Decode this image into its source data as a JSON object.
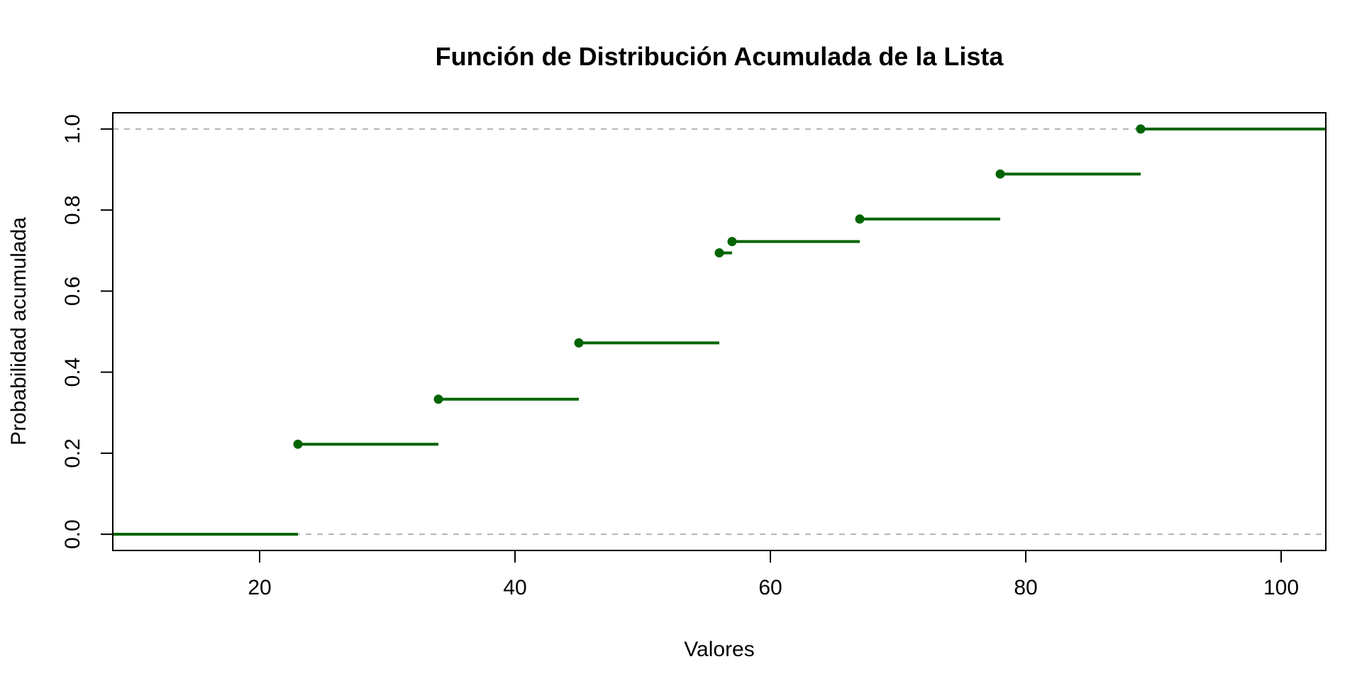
{
  "chart_data": {
    "type": "line",
    "subtype": "step-ecdf",
    "title": "Función de Distribución Acumulada de la Lista",
    "xlabel": "Valores",
    "ylabel": "Probabilidad acumulada",
    "xlim": [
      8.5,
      103.5
    ],
    "ylim": [
      -0.04,
      1.04
    ],
    "xticks": [
      20,
      40,
      60,
      80,
      100
    ],
    "yticks": [
      0.0,
      0.2,
      0.4,
      0.6,
      0.8,
      1.0
    ],
    "ytick_labels": [
      "0.0",
      "0.2",
      "0.4",
      "0.6",
      "0.8",
      "1.0"
    ],
    "reference_lines": [
      0,
      1
    ],
    "line_color": "#006400",
    "reference_line_color": "#b3b3b3",
    "steps": [
      {
        "x_start": 8.5,
        "x_end": 23,
        "y": 0.0,
        "point": false
      },
      {
        "x_start": 23,
        "x_end": 34,
        "y": 0.2222,
        "point": true
      },
      {
        "x_start": 34,
        "x_end": 45,
        "y": 0.3333,
        "point": true
      },
      {
        "x_start": 45,
        "x_end": 56,
        "y": 0.4722,
        "point": true
      },
      {
        "x_start": 56,
        "x_end": 57,
        "y": 0.6944,
        "point": true
      },
      {
        "x_start": 57,
        "x_end": 67,
        "y": 0.7222,
        "point": true
      },
      {
        "x_start": 67,
        "x_end": 78,
        "y": 0.7778,
        "point": true
      },
      {
        "x_start": 78,
        "x_end": 89,
        "y": 0.8889,
        "point": true
      },
      {
        "x_start": 89,
        "x_end": 103.5,
        "y": 1.0,
        "point": true
      }
    ]
  }
}
